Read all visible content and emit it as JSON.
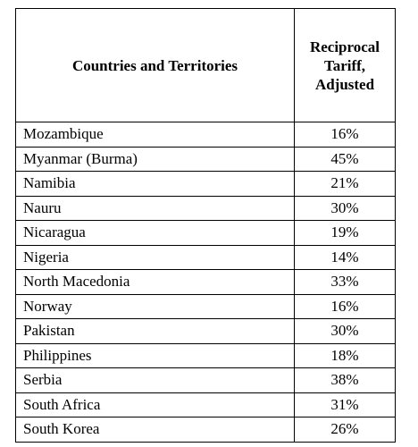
{
  "table": {
    "headers": {
      "country": "Countries and Territories",
      "tariff_lines": [
        "Reciprocal",
        "Tariff,",
        "Adjusted"
      ]
    },
    "rows": [
      {
        "country": "Mozambique",
        "tariff": "16%"
      },
      {
        "country": "Myanmar (Burma)",
        "tariff": "45%"
      },
      {
        "country": "Namibia",
        "tariff": "21%"
      },
      {
        "country": "Nauru",
        "tariff": "30%"
      },
      {
        "country": "Nicaragua",
        "tariff": "19%"
      },
      {
        "country": "Nigeria",
        "tariff": "14%"
      },
      {
        "country": "North Macedonia",
        "tariff": "33%"
      },
      {
        "country": "Norway",
        "tariff": "16%"
      },
      {
        "country": "Pakistan",
        "tariff": "30%"
      },
      {
        "country": "Philippines",
        "tariff": "18%"
      },
      {
        "country": "Serbia",
        "tariff": "38%"
      },
      {
        "country": "South Africa",
        "tariff": "31%"
      },
      {
        "country": "South Korea",
        "tariff": "26%"
      }
    ]
  }
}
